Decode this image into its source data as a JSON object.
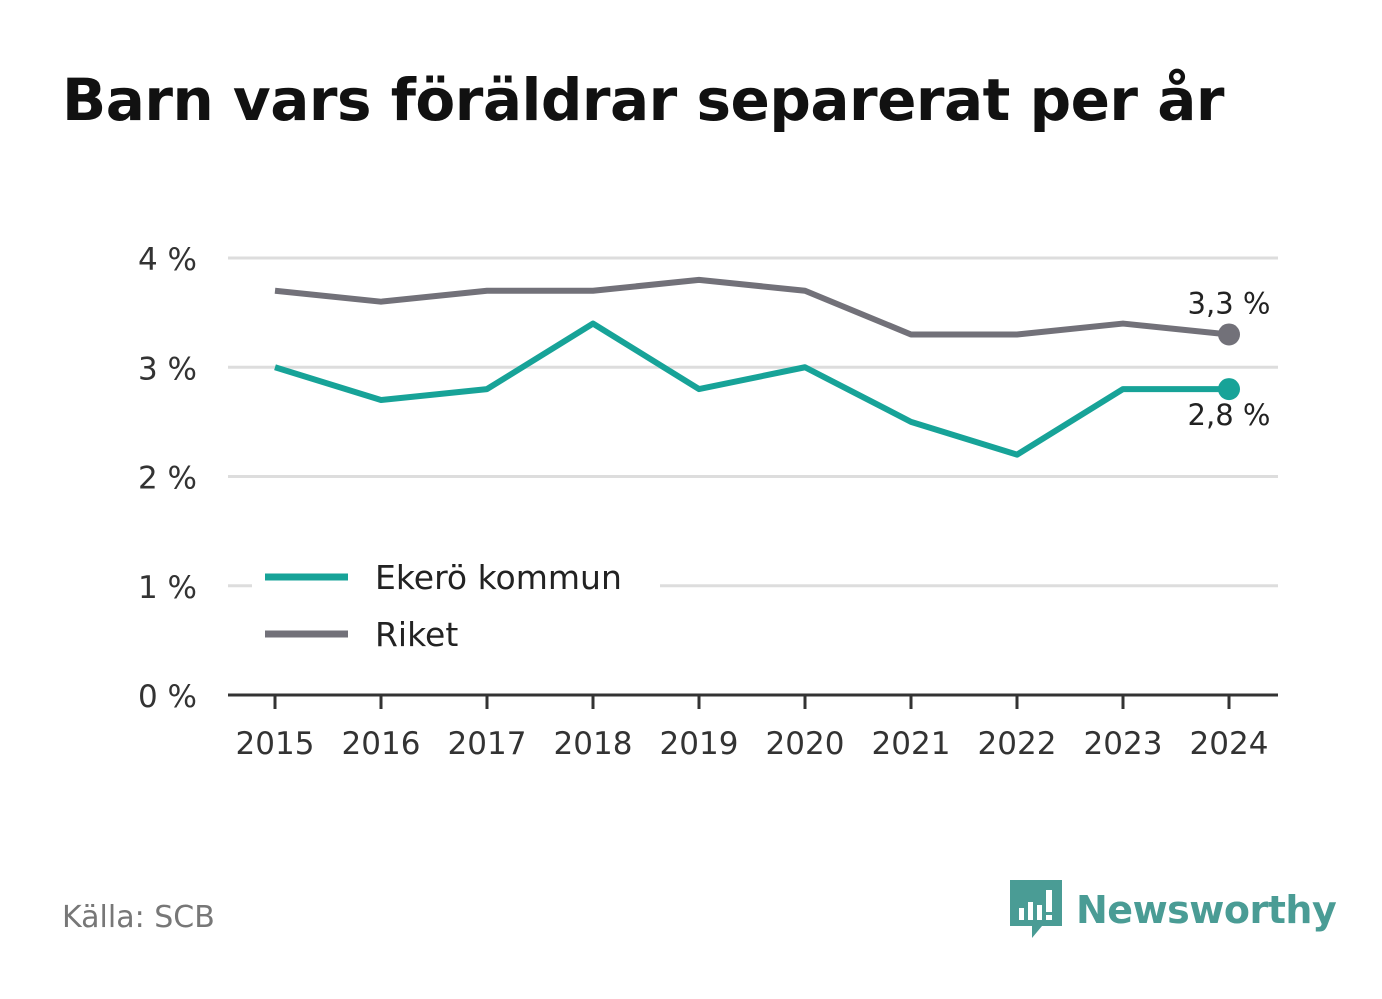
{
  "title": "Barn vars föräldrar separerat per år",
  "source": "Källa: SCB",
  "brand": {
    "name": "Newsworthy",
    "icon": "bar-chart-speech-bubble-icon",
    "color": "#4a9c95"
  },
  "colors": {
    "ekero": "#17a398",
    "riket": "#727179",
    "grid": "#dddddd",
    "axis": "#333333"
  },
  "chart_data": {
    "type": "line",
    "x": [
      "2015",
      "2016",
      "2017",
      "2018",
      "2019",
      "2020",
      "2021",
      "2022",
      "2023",
      "2024"
    ],
    "ylim": [
      0,
      4
    ],
    "yticks": [
      0,
      1,
      2,
      3,
      4
    ],
    "ytick_labels": [
      "0 %",
      "1 %",
      "2 %",
      "3 %",
      "4 %"
    ],
    "grid": true,
    "legend_position": "bottom-left",
    "series": [
      {
        "name": "Ekerö kommun",
        "color": "#17a398",
        "values": [
          3.0,
          2.7,
          2.8,
          3.4,
          2.8,
          3.0,
          2.5,
          2.2,
          2.8,
          2.8
        ],
        "end_label": "2,8 %"
      },
      {
        "name": "Riket",
        "color": "#727179",
        "values": [
          3.7,
          3.6,
          3.7,
          3.7,
          3.8,
          3.7,
          3.3,
          3.3,
          3.4,
          3.3
        ],
        "end_label": "3,3 %"
      }
    ]
  }
}
